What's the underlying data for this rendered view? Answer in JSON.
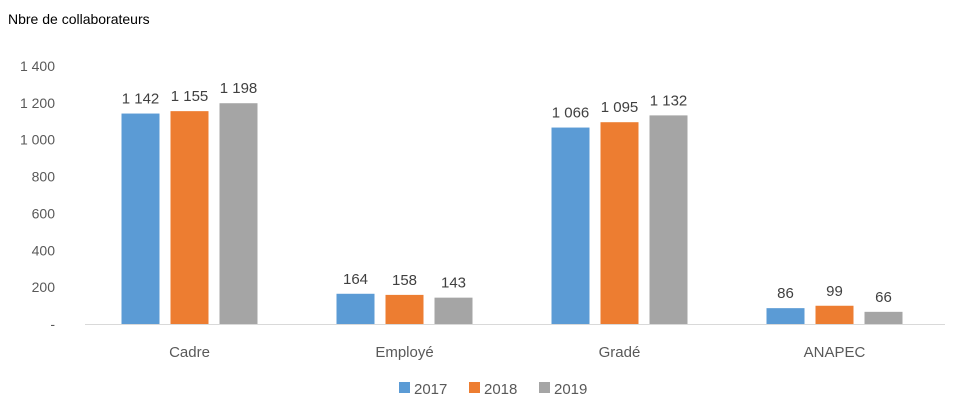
{
  "chart_data": {
    "type": "bar",
    "ylabel": "Nbre de collaborateurs",
    "categories": [
      "Cadre",
      "Employé",
      "Gradé",
      "ANAPEC"
    ],
    "series": [
      {
        "name": "2017",
        "color": "#5B9BD5",
        "values": [
          1142,
          164,
          1066,
          86
        ],
        "labels": [
          "1 142",
          "164",
          "1 066",
          "86"
        ]
      },
      {
        "name": "2018",
        "color": "#ED7D31",
        "values": [
          1155,
          158,
          1095,
          99
        ],
        "labels": [
          "1 155",
          "158",
          "1 095",
          "99"
        ]
      },
      {
        "name": "2019",
        "color": "#A5A5A5",
        "values": [
          1198,
          143,
          1132,
          66
        ],
        "labels": [
          "1 198",
          "143",
          "1 132",
          "66"
        ]
      }
    ],
    "ylim": [
      0,
      1400
    ],
    "yticks": [
      0,
      200,
      400,
      600,
      800,
      1000,
      1200,
      1400
    ],
    "ytick_labels": [
      "-",
      "200",
      "400",
      "600",
      "800",
      "1 000",
      "1 200",
      "1 400"
    ],
    "grid": false,
    "legend_position": "bottom"
  }
}
